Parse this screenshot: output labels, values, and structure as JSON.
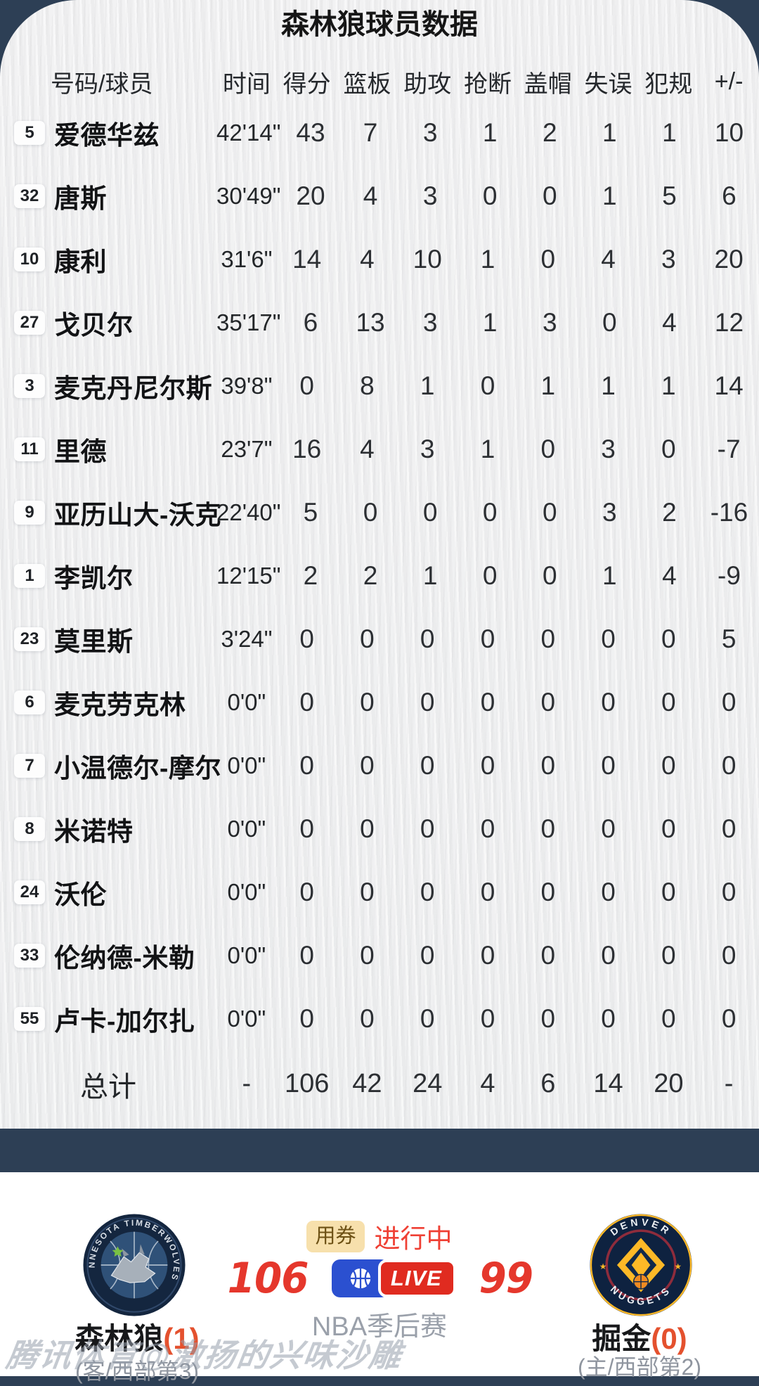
{
  "title": "森林狼球员数据",
  "table": {
    "headers": [
      "号码/球员",
      "时间",
      "得分",
      "篮板",
      "助攻",
      "抢断",
      "盖帽",
      "失误",
      "犯规",
      "+/-"
    ],
    "stat_keys": [
      "minutes",
      "points",
      "rebounds",
      "assists",
      "steals",
      "blocks",
      "turnovers",
      "fouls",
      "plus-minus"
    ],
    "rows": [
      {
        "num": "5",
        "name": "爱德华兹",
        "stats": [
          "42'14\"",
          "43",
          "7",
          "3",
          "1",
          "2",
          "1",
          "1",
          "10"
        ]
      },
      {
        "num": "32",
        "name": "唐斯",
        "stats": [
          "30'49\"",
          "20",
          "4",
          "3",
          "0",
          "0",
          "1",
          "5",
          "6"
        ]
      },
      {
        "num": "10",
        "name": "康利",
        "stats": [
          "31'6\"",
          "14",
          "4",
          "10",
          "1",
          "0",
          "4",
          "3",
          "20"
        ]
      },
      {
        "num": "27",
        "name": "戈贝尔",
        "stats": [
          "35'17\"",
          "6",
          "13",
          "3",
          "1",
          "3",
          "0",
          "4",
          "12"
        ]
      },
      {
        "num": "3",
        "name": "麦克丹尼尔斯",
        "stats": [
          "39'8\"",
          "0",
          "8",
          "1",
          "0",
          "1",
          "1",
          "1",
          "14"
        ]
      },
      {
        "num": "11",
        "name": "里德",
        "stats": [
          "23'7\"",
          "16",
          "4",
          "3",
          "1",
          "0",
          "3",
          "0",
          "-7"
        ]
      },
      {
        "num": "9",
        "name": "亚历山大-沃克",
        "stats": [
          "22'40\"",
          "5",
          "0",
          "0",
          "0",
          "0",
          "3",
          "2",
          "-16"
        ]
      },
      {
        "num": "1",
        "name": "李凯尔",
        "stats": [
          "12'15\"",
          "2",
          "2",
          "1",
          "0",
          "0",
          "1",
          "4",
          "-9"
        ]
      },
      {
        "num": "23",
        "name": "莫里斯",
        "stats": [
          "3'24\"",
          "0",
          "0",
          "0",
          "0",
          "0",
          "0",
          "0",
          "5"
        ]
      },
      {
        "num": "6",
        "name": "麦克劳克林",
        "stats": [
          "0'0\"",
          "0",
          "0",
          "0",
          "0",
          "0",
          "0",
          "0",
          "0"
        ]
      },
      {
        "num": "7",
        "name": "小温德尔-摩尔",
        "stats": [
          "0'0\"",
          "0",
          "0",
          "0",
          "0",
          "0",
          "0",
          "0",
          "0"
        ]
      },
      {
        "num": "8",
        "name": "米诺特",
        "stats": [
          "0'0\"",
          "0",
          "0",
          "0",
          "0",
          "0",
          "0",
          "0",
          "0"
        ]
      },
      {
        "num": "24",
        "name": "沃伦",
        "stats": [
          "0'0\"",
          "0",
          "0",
          "0",
          "0",
          "0",
          "0",
          "0",
          "0"
        ]
      },
      {
        "num": "33",
        "name": "伦纳德-米勒",
        "stats": [
          "0'0\"",
          "0",
          "0",
          "0",
          "0",
          "0",
          "0",
          "0",
          "0"
        ]
      },
      {
        "num": "55",
        "name": "卢卡-加尔扎",
        "stats": [
          "0'0\"",
          "0",
          "0",
          "0",
          "0",
          "0",
          "0",
          "0",
          "0"
        ]
      }
    ],
    "total": {
      "label": "总计",
      "stats": [
        "-",
        "106",
        "42",
        "24",
        "4",
        "6",
        "14",
        "20",
        "-"
      ]
    }
  },
  "scoreboard": {
    "coupon_tag": "用券",
    "status": "进行中",
    "live_label": "LIVE",
    "league": "NBA季后赛",
    "left": {
      "score": "106",
      "name": "森林狼",
      "seed": "(1)",
      "note": "(客/西部第3)",
      "logo_ring": "MINNESOTA TIMBERWOLVES"
    },
    "right": {
      "score": "99",
      "name": "掘金",
      "seed": "(0)",
      "note": "(主/西部第2)",
      "logo_top": "DENVER",
      "logo_bottom": "NUGGETS"
    }
  },
  "watermark": "腾讯体育@激扬的兴味沙雕",
  "colors": {
    "navy": "#2d3f55",
    "score_red": "#e5372c",
    "status_red": "#ef4034",
    "seed_orange": "#e4512e",
    "coupon_bg": "#f7e0ac",
    "live_blue": "#2b50d0",
    "live_red": "#e02b20",
    "muted_gray": "#9aa0aa"
  }
}
